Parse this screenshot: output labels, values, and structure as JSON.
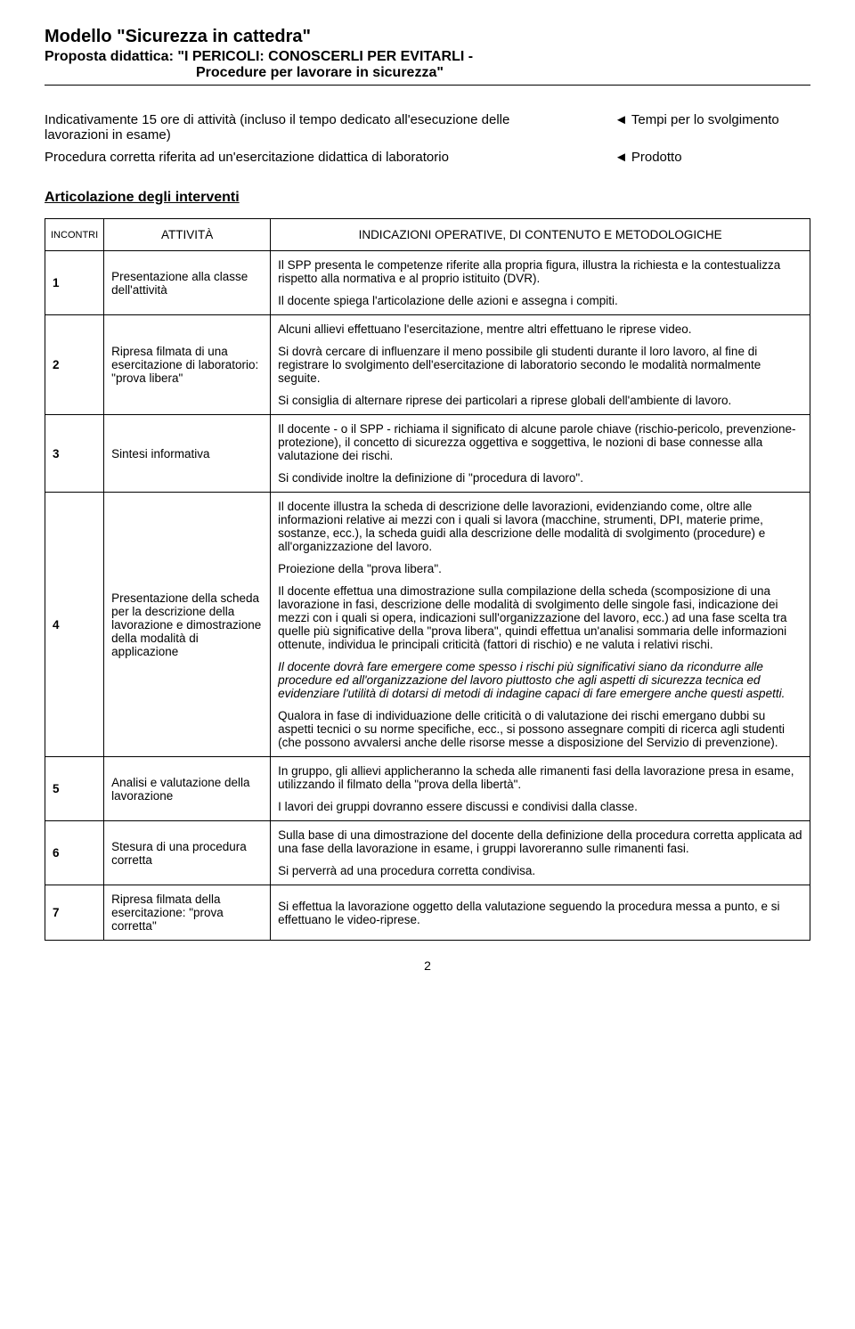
{
  "header": {
    "title": "Modello \"Sicurezza in cattedra\"",
    "subtitle_prefix": "Proposta didattica:",
    "subtitle_rest": " \"I PERICOLI: CONOSCERLI PER EVITARLI -",
    "subtitle_line2": "Procedure per lavorare in sicurezza\""
  },
  "lead": {
    "left1": "Indicativamente 15 ore di attività (incluso il tempo dedicato all'esecuzione delle lavorazioni in esame)",
    "right1": "Tempi per lo svolgimento",
    "left2": "Procedura corretta riferita ad un'esercitazione didattica di laboratorio",
    "right2": "Prodotto",
    "marker": "◄"
  },
  "section_title": "Articolazione degli interventi",
  "table": {
    "headers": {
      "c1": "INCONTRI",
      "c2": "ATTIVITÀ",
      "c3": "INDICAZIONI OPERATIVE, DI CONTENUTO E METODOLOGICHE"
    },
    "rows": [
      {
        "n": "1",
        "activity": "Presentazione alla classe dell'attività",
        "desc": [
          "Il SPP presenta le competenze riferite alla propria figura, illustra la richiesta e la contestualizza rispetto alla normativa e al proprio istituito (DVR).",
          "Il docente spiega l'articolazione delle azioni e assegna i compiti."
        ],
        "just": false
      },
      {
        "n": "2",
        "activity": "Ripresa filmata di una esercitazione di laboratorio: \"prova libera\"",
        "desc": [
          "Alcuni allievi effettuano l'esercitazione, mentre altri effettuano le riprese video.",
          "Si dovrà cercare di influenzare il meno possibile gli studenti durante il loro lavoro, al fine di registrare lo svolgimento dell'esercitazione di laboratorio secondo le modalità normalmente seguite.",
          "Si consiglia di alternare riprese dei particolari a riprese globali dell'ambiente di lavoro."
        ],
        "just": false
      },
      {
        "n": "3",
        "activity": "Sintesi informativa",
        "desc": [
          "Il docente - o il SPP - richiama il significato di alcune parole chiave (rischio-pericolo, prevenzione-protezione), il concetto di sicurezza oggettiva e soggettiva, le nozioni di base connesse alla valutazione dei rischi.",
          "Si condivide inoltre la definizione di \"procedura di lavoro\"."
        ],
        "just": true
      },
      {
        "n": "4",
        "activity": "Presentazione della scheda per la descrizione della lavorazione e dimostrazione della modalità di applicazione",
        "desc": [
          "Il docente illustra la scheda di descrizione delle lavorazioni, evidenziando come, oltre alle informazioni relative ai mezzi con i quali si lavora (macchine, strumenti, DPI, materie prime, sostanze, ecc.), la scheda guidi alla descrizione delle modalità di svolgimento (procedure) e all'organizzazione del lavoro.",
          "Proiezione della \"prova libera\".",
          "Il docente effettua una dimostrazione sulla compilazione della scheda (scomposizione di una lavorazione in fasi, descrizione delle modalità di svolgimento delle singole fasi, indicazione dei mezzi con i quali si opera, indicazioni sull'organizzazione del lavoro, ecc.) ad una fase scelta tra quelle più significative della \"prova libera\", quindi effettua un'analisi sommaria delle informazioni ottenute, individua le principali criticità (fattori di rischio) e ne valuta i relativi rischi.",
          "Il docente dovrà fare emergere come spesso i rischi più significativi siano da ricondurre alle procedure ed all'organizzazione del lavoro piuttosto che agli aspetti di sicurezza tecnica ed evidenziare l'utilità di dotarsi di metodi di indagine capaci di fare emergere anche questi aspetti.",
          "Qualora in fase di individuazione delle criticità o di valutazione dei rischi emergano dubbi su aspetti tecnici o su norme specifiche, ecc., si possono assegnare compiti di ricerca agli studenti (che possono avvalersi anche delle risorse messe a disposizione del Servizio di prevenzione)."
        ],
        "just": false,
        "italic_idx": 3
      },
      {
        "n": "5",
        "activity": "Analisi e valutazione della lavorazione",
        "desc": [
          "In gruppo, gli allievi applicheranno la scheda alle rimanenti fasi della lavorazione presa in esame, utilizzando il filmato della \"prova della libertà\".",
          "I lavori dei gruppi dovranno essere discussi e condivisi dalla classe."
        ],
        "just": false
      },
      {
        "n": "6",
        "activity": "Stesura di una procedura corretta",
        "desc": [
          "Sulla base di una dimostrazione del docente della definizione della procedura corretta applicata ad una fase della lavorazione in esame, i gruppi lavoreranno sulle rimanenti fasi.",
          "Si perverrà ad una procedura corretta condivisa."
        ],
        "just": false
      },
      {
        "n": "7",
        "activity": "Ripresa filmata della esercitazione: \"prova corretta\"",
        "desc": [
          "Si effettua la lavorazione oggetto della valutazione seguendo la procedura messa a punto, e si effettuano le video-riprese."
        ],
        "just": false
      }
    ]
  },
  "pagenum": "2"
}
